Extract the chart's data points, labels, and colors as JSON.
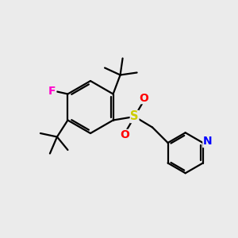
{
  "background_color": "#ebebeb",
  "bond_color": "#000000",
  "atom_colors": {
    "F": "#ff00cc",
    "S": "#cccc00",
    "O": "#ff0000",
    "N": "#0000ff",
    "C": "#000000"
  },
  "figsize": [
    3.0,
    3.0
  ],
  "dpi": 100,
  "xlim": [
    0,
    10
  ],
  "ylim": [
    0,
    10
  ]
}
